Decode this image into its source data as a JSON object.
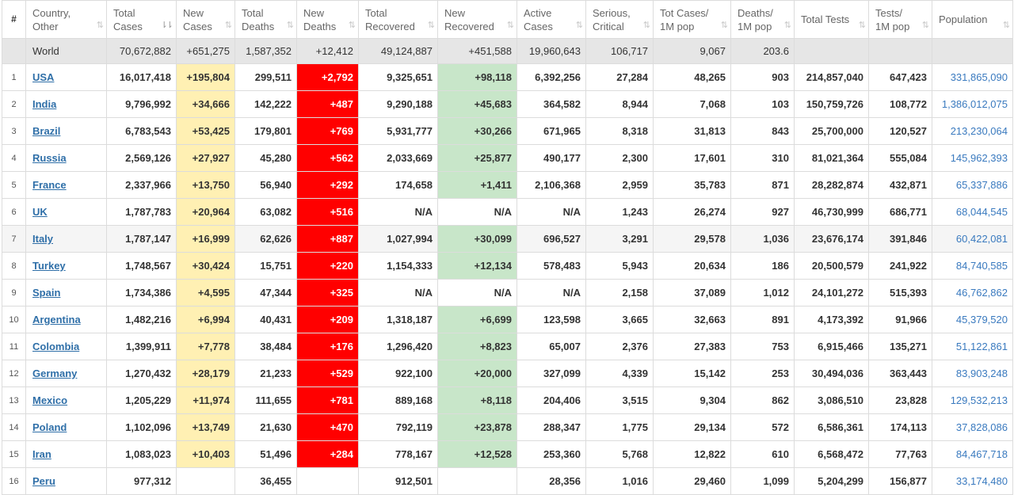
{
  "columns": [
    {
      "key": "idx",
      "label": "#"
    },
    {
      "key": "country",
      "label": "Country, Other"
    },
    {
      "key": "total_cases",
      "label": "Total Cases",
      "sorted": true
    },
    {
      "key": "new_cases",
      "label": "New Cases"
    },
    {
      "key": "total_deaths",
      "label": "Total Deaths"
    },
    {
      "key": "new_deaths",
      "label": "New Deaths"
    },
    {
      "key": "total_recovered",
      "label": "Total Recovered"
    },
    {
      "key": "new_recovered",
      "label": "New Recovered"
    },
    {
      "key": "active_cases",
      "label": "Active Cases"
    },
    {
      "key": "serious_critical",
      "label": "Serious, Critical"
    },
    {
      "key": "tot_cases_1m",
      "label": "Tot Cases/ 1M pop"
    },
    {
      "key": "deaths_1m",
      "label": "Deaths/ 1M pop"
    },
    {
      "key": "total_tests",
      "label": "Total Tests"
    },
    {
      "key": "tests_1m",
      "label": "Tests/ 1M pop"
    },
    {
      "key": "population",
      "label": "Population"
    }
  ],
  "sort_icon": "⇅",
  "sort_icon_active": "⇂⇂",
  "colors": {
    "new_cases_bg": "#fff0b3",
    "new_deaths_bg": "#ff0000",
    "new_recovered_bg": "#c8e6c9",
    "world_row_bg": "#e6e6e6",
    "link": "#2f6fa8"
  },
  "world": {
    "country": "World",
    "total_cases": "70,672,882",
    "new_cases": "+651,275",
    "total_deaths": "1,587,352",
    "new_deaths": "+12,412",
    "total_recovered": "49,124,887",
    "new_recovered": "+451,588",
    "active_cases": "19,960,643",
    "serious_critical": "106,717",
    "tot_cases_1m": "9,067",
    "deaths_1m": "203.6",
    "total_tests": "",
    "tests_1m": "",
    "population": ""
  },
  "rows": [
    {
      "idx": "1",
      "country": "USA",
      "total_cases": "16,017,418",
      "new_cases": "+195,804",
      "total_deaths": "299,511",
      "new_deaths": "+2,792",
      "total_recovered": "9,325,651",
      "new_recovered": "+98,118",
      "active_cases": "6,392,256",
      "serious_critical": "27,284",
      "tot_cases_1m": "48,265",
      "deaths_1m": "903",
      "total_tests": "214,857,040",
      "tests_1m": "647,423",
      "population": "331,865,090"
    },
    {
      "idx": "2",
      "country": "India",
      "total_cases": "9,796,992",
      "new_cases": "+34,666",
      "total_deaths": "142,222",
      "new_deaths": "+487",
      "total_recovered": "9,290,188",
      "new_recovered": "+45,683",
      "active_cases": "364,582",
      "serious_critical": "8,944",
      "tot_cases_1m": "7,068",
      "deaths_1m": "103",
      "total_tests": "150,759,726",
      "tests_1m": "108,772",
      "population": "1,386,012,075"
    },
    {
      "idx": "3",
      "country": "Brazil",
      "total_cases": "6,783,543",
      "new_cases": "+53,425",
      "total_deaths": "179,801",
      "new_deaths": "+769",
      "total_recovered": "5,931,777",
      "new_recovered": "+30,266",
      "active_cases": "671,965",
      "serious_critical": "8,318",
      "tot_cases_1m": "31,813",
      "deaths_1m": "843",
      "total_tests": "25,700,000",
      "tests_1m": "120,527",
      "population": "213,230,064"
    },
    {
      "idx": "4",
      "country": "Russia",
      "total_cases": "2,569,126",
      "new_cases": "+27,927",
      "total_deaths": "45,280",
      "new_deaths": "+562",
      "total_recovered": "2,033,669",
      "new_recovered": "+25,877",
      "active_cases": "490,177",
      "serious_critical": "2,300",
      "tot_cases_1m": "17,601",
      "deaths_1m": "310",
      "total_tests": "81,021,364",
      "tests_1m": "555,084",
      "population": "145,962,393"
    },
    {
      "idx": "5",
      "country": "France",
      "total_cases": "2,337,966",
      "new_cases": "+13,750",
      "total_deaths": "56,940",
      "new_deaths": "+292",
      "total_recovered": "174,658",
      "new_recovered": "+1,411",
      "active_cases": "2,106,368",
      "serious_critical": "2,959",
      "tot_cases_1m": "35,783",
      "deaths_1m": "871",
      "total_tests": "28,282,874",
      "tests_1m": "432,871",
      "population": "65,337,886"
    },
    {
      "idx": "6",
      "country": "UK",
      "total_cases": "1,787,783",
      "new_cases": "+20,964",
      "total_deaths": "63,082",
      "new_deaths": "+516",
      "total_recovered": "N/A",
      "new_recovered": "N/A",
      "active_cases": "N/A",
      "serious_critical": "1,243",
      "tot_cases_1m": "26,274",
      "deaths_1m": "927",
      "total_tests": "46,730,999",
      "tests_1m": "686,771",
      "population": "68,044,545"
    },
    {
      "idx": "7",
      "country": "Italy",
      "total_cases": "1,787,147",
      "new_cases": "+16,999",
      "total_deaths": "62,626",
      "new_deaths": "+887",
      "total_recovered": "1,027,994",
      "new_recovered": "+30,099",
      "active_cases": "696,527",
      "serious_critical": "3,291",
      "tot_cases_1m": "29,578",
      "deaths_1m": "1,036",
      "total_tests": "23,676,174",
      "tests_1m": "391,846",
      "population": "60,422,081"
    },
    {
      "idx": "8",
      "country": "Turkey",
      "total_cases": "1,748,567",
      "new_cases": "+30,424",
      "total_deaths": "15,751",
      "new_deaths": "+220",
      "total_recovered": "1,154,333",
      "new_recovered": "+12,134",
      "active_cases": "578,483",
      "serious_critical": "5,943",
      "tot_cases_1m": "20,634",
      "deaths_1m": "186",
      "total_tests": "20,500,579",
      "tests_1m": "241,922",
      "population": "84,740,585"
    },
    {
      "idx": "9",
      "country": "Spain",
      "total_cases": "1,734,386",
      "new_cases": "+4,595",
      "total_deaths": "47,344",
      "new_deaths": "+325",
      "total_recovered": "N/A",
      "new_recovered": "N/A",
      "active_cases": "N/A",
      "serious_critical": "2,158",
      "tot_cases_1m": "37,089",
      "deaths_1m": "1,012",
      "total_tests": "24,101,272",
      "tests_1m": "515,393",
      "population": "46,762,862"
    },
    {
      "idx": "10",
      "country": "Argentina",
      "total_cases": "1,482,216",
      "new_cases": "+6,994",
      "total_deaths": "40,431",
      "new_deaths": "+209",
      "total_recovered": "1,318,187",
      "new_recovered": "+6,699",
      "active_cases": "123,598",
      "serious_critical": "3,665",
      "tot_cases_1m": "32,663",
      "deaths_1m": "891",
      "total_tests": "4,173,392",
      "tests_1m": "91,966",
      "population": "45,379,520"
    },
    {
      "idx": "11",
      "country": "Colombia",
      "total_cases": "1,399,911",
      "new_cases": "+7,778",
      "total_deaths": "38,484",
      "new_deaths": "+176",
      "total_recovered": "1,296,420",
      "new_recovered": "+8,823",
      "active_cases": "65,007",
      "serious_critical": "2,376",
      "tot_cases_1m": "27,383",
      "deaths_1m": "753",
      "total_tests": "6,915,466",
      "tests_1m": "135,271",
      "population": "51,122,861"
    },
    {
      "idx": "12",
      "country": "Germany",
      "total_cases": "1,270,432",
      "new_cases": "+28,179",
      "total_deaths": "21,233",
      "new_deaths": "+529",
      "total_recovered": "922,100",
      "new_recovered": "+20,000",
      "active_cases": "327,099",
      "serious_critical": "4,339",
      "tot_cases_1m": "15,142",
      "deaths_1m": "253",
      "total_tests": "30,494,036",
      "tests_1m": "363,443",
      "population": "83,903,248"
    },
    {
      "idx": "13",
      "country": "Mexico",
      "total_cases": "1,205,229",
      "new_cases": "+11,974",
      "total_deaths": "111,655",
      "new_deaths": "+781",
      "total_recovered": "889,168",
      "new_recovered": "+8,118",
      "active_cases": "204,406",
      "serious_critical": "3,515",
      "tot_cases_1m": "9,304",
      "deaths_1m": "862",
      "total_tests": "3,086,510",
      "tests_1m": "23,828",
      "population": "129,532,213"
    },
    {
      "idx": "14",
      "country": "Poland",
      "total_cases": "1,102,096",
      "new_cases": "+13,749",
      "total_deaths": "21,630",
      "new_deaths": "+470",
      "total_recovered": "792,119",
      "new_recovered": "+23,878",
      "active_cases": "288,347",
      "serious_critical": "1,775",
      "tot_cases_1m": "29,134",
      "deaths_1m": "572",
      "total_tests": "6,586,361",
      "tests_1m": "174,113",
      "population": "37,828,086"
    },
    {
      "idx": "15",
      "country": "Iran",
      "total_cases": "1,083,023",
      "new_cases": "+10,403",
      "total_deaths": "51,496",
      "new_deaths": "+284",
      "total_recovered": "778,167",
      "new_recovered": "+12,528",
      "active_cases": "253,360",
      "serious_critical": "5,768",
      "tot_cases_1m": "12,822",
      "deaths_1m": "610",
      "total_tests": "6,568,472",
      "tests_1m": "77,763",
      "population": "84,467,718"
    },
    {
      "idx": "16",
      "country": "Peru",
      "total_cases": "977,312",
      "new_cases": "",
      "total_deaths": "36,455",
      "new_deaths": "",
      "total_recovered": "912,501",
      "new_recovered": "",
      "active_cases": "28,356",
      "serious_critical": "1,016",
      "tot_cases_1m": "29,460",
      "deaths_1m": "1,099",
      "total_tests": "5,204,299",
      "tests_1m": "156,877",
      "population": "33,174,480"
    }
  ]
}
